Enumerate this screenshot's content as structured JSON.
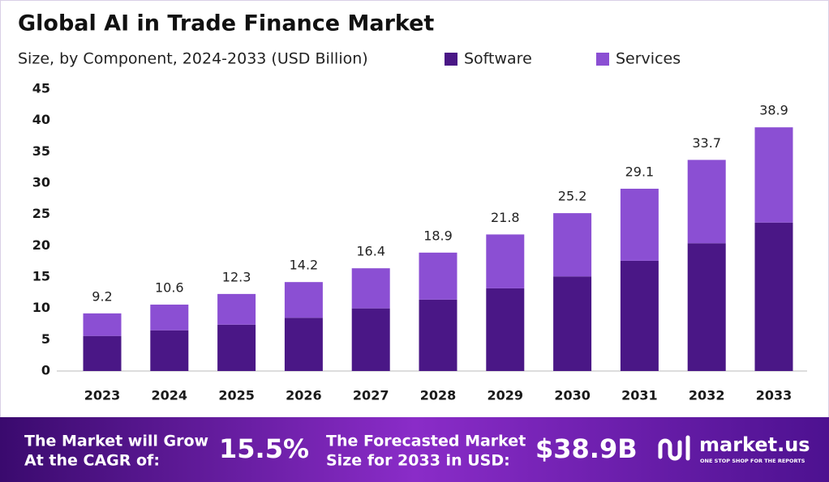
{
  "chart_data": {
    "type": "stacked_bar",
    "title": "Global AI in Trade Finance Market",
    "subtitle": "Size, by Component, 2024-2033 (USD Billion)",
    "categories": [
      "2023",
      "2024",
      "2025",
      "2026",
      "2027",
      "2028",
      "2029",
      "2030",
      "2031",
      "2032",
      "2033"
    ],
    "series": [
      {
        "name": "Software",
        "color": "#4a1786",
        "values": [
          5.6,
          6.5,
          7.4,
          8.5,
          10.0,
          11.4,
          13.2,
          15.1,
          17.6,
          20.4,
          23.7
        ]
      },
      {
        "name": "Services",
        "color": "#8b4fd3",
        "values": [
          3.6,
          4.1,
          4.9,
          5.7,
          6.4,
          7.5,
          8.6,
          10.1,
          11.5,
          13.3,
          15.2
        ]
      }
    ],
    "totals": [
      9.2,
      10.6,
      12.3,
      14.2,
      16.4,
      18.9,
      21.8,
      25.2,
      29.1,
      33.7,
      38.9
    ],
    "ylim": [
      0,
      45
    ],
    "yticks": [
      0,
      5,
      10,
      15,
      20,
      25,
      30,
      35,
      40,
      45
    ],
    "grid": false
  },
  "footer": {
    "cagr_label": [
      "The Market will Grow",
      "At the CAGR of:"
    ],
    "cagr_value": "15.5%",
    "forecast_label": [
      "The Forecasted Market",
      "Size for 2033 in USD:"
    ],
    "forecast_value": "$38.9B",
    "brand": "market.us",
    "tagline": "ONE STOP SHOP FOR THE REPORTS"
  }
}
